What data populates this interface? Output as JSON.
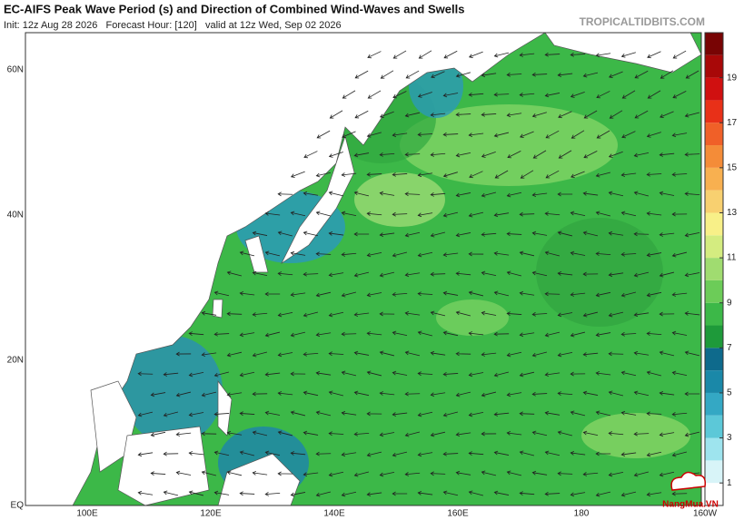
{
  "header": {
    "title": "EC-AIFS Peak Wave Period (s) and Direction of Combined Wind-Waves and Swells",
    "init": "Init: 12z Aug 28 2026   Forecast Hour: [120]   valid at 12z Wed, Sep 02 2026",
    "site": "TROPICALTIDBITS.COM"
  },
  "map": {
    "lat_labels": [
      "60N",
      "40N",
      "20N",
      "EQ"
    ],
    "lon_labels": [
      "100E",
      "120E",
      "140E",
      "160E",
      "180",
      "160W"
    ]
  },
  "colorbar": {
    "ticks": [
      1,
      3,
      5,
      7,
      9,
      11,
      13,
      15,
      17,
      19
    ],
    "lim": [
      0,
      21
    ]
  },
  "watermark": "NangMua.VN"
}
